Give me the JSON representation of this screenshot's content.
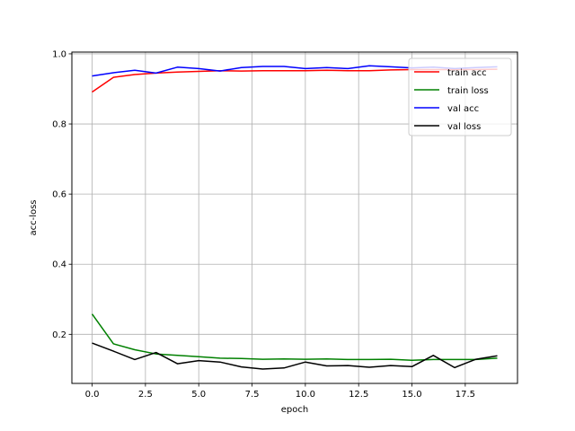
{
  "chart_data": {
    "type": "line",
    "title": "",
    "xlabel": "epoch",
    "ylabel": "acc-loss",
    "xlim": [
      -0.95,
      19.95
    ],
    "ylim": [
      0.06,
      1.005
    ],
    "xticks": [
      0,
      2.5,
      5,
      7.5,
      10,
      12.5,
      15,
      17.5
    ],
    "xtick_labels": [
      "0.0",
      "2.5",
      "5.0",
      "7.5",
      "10.0",
      "12.5",
      "15.0",
      "17.5"
    ],
    "yticks": [
      0.2,
      0.4,
      0.6,
      0.8,
      1.0
    ],
    "ytick_labels": [
      "0.2",
      "0.4",
      "0.6",
      "0.8",
      "1.0"
    ],
    "grid": true,
    "legend_position": "upper right",
    "x": [
      0,
      1,
      2,
      3,
      4,
      5,
      6,
      7,
      8,
      9,
      10,
      11,
      12,
      13,
      14,
      15,
      16,
      17,
      18,
      19
    ],
    "series": [
      {
        "name": "train acc",
        "color": "#ff0000",
        "values": [
          0.891,
          0.933,
          0.941,
          0.945,
          0.948,
          0.95,
          0.952,
          0.951,
          0.952,
          0.952,
          0.952,
          0.953,
          0.952,
          0.952,
          0.954,
          0.955,
          0.955,
          0.955,
          0.955,
          0.956
        ]
      },
      {
        "name": "train loss",
        "color": "#008000",
        "values": [
          0.258,
          0.173,
          0.156,
          0.144,
          0.14,
          0.136,
          0.132,
          0.131,
          0.129,
          0.13,
          0.129,
          0.13,
          0.128,
          0.128,
          0.129,
          0.126,
          0.128,
          0.128,
          0.128,
          0.132
        ]
      },
      {
        "name": "val acc",
        "color": "#0000ff",
        "values": [
          0.937,
          0.946,
          0.953,
          0.945,
          0.962,
          0.958,
          0.951,
          0.961,
          0.964,
          0.964,
          0.958,
          0.961,
          0.958,
          0.966,
          0.963,
          0.96,
          0.962,
          0.958,
          0.961,
          0.963
        ]
      },
      {
        "name": "val loss",
        "color": "#000000",
        "values": [
          0.175,
          0.152,
          0.128,
          0.148,
          0.116,
          0.125,
          0.121,
          0.107,
          0.101,
          0.104,
          0.121,
          0.11,
          0.111,
          0.106,
          0.111,
          0.108,
          0.14,
          0.105,
          0.129,
          0.139
        ]
      }
    ]
  }
}
